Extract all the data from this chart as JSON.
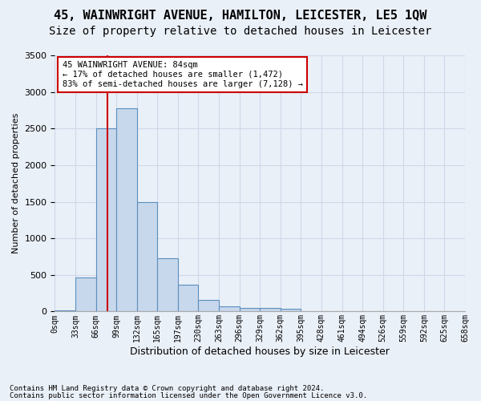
{
  "title": "45, WAINWRIGHT AVENUE, HAMILTON, LEICESTER, LE5 1QW",
  "subtitle": "Size of property relative to detached houses in Leicester",
  "xlabel": "Distribution of detached houses by size in Leicester",
  "ylabel": "Number of detached properties",
  "bin_labels": [
    "0sqm",
    "33sqm",
    "66sqm",
    "99sqm",
    "132sqm",
    "165sqm",
    "197sqm",
    "230sqm",
    "263sqm",
    "296sqm",
    "329sqm",
    "362sqm",
    "395sqm",
    "428sqm",
    "461sqm",
    "494sqm",
    "526sqm",
    "559sqm",
    "592sqm",
    "625sqm",
    "658sqm"
  ],
  "bar_values": [
    20,
    470,
    2500,
    2780,
    1500,
    730,
    370,
    155,
    65,
    50,
    45,
    35,
    5,
    5,
    5,
    5,
    5,
    5,
    5,
    5
  ],
  "bar_color": "#c8d8ec",
  "bar_edge_color": "#5a8fc0",
  "property_line_x": 84,
  "property_sqm": 84,
  "vline_color": "#cc0000",
  "annotation_text": "45 WAINWRIGHT AVENUE: 84sqm\n← 17% of detached houses are smaller (1,472)\n83% of semi-detached houses are larger (7,128) →",
  "annotation_box_color": "#ffffff",
  "annotation_box_edge": "#cc0000",
  "ylim": [
    0,
    3500
  ],
  "yticks": [
    0,
    500,
    1000,
    1500,
    2000,
    2500,
    3000,
    3500
  ],
  "grid_color": "#d0d8e8",
  "background_color": "#eaf0f8",
  "footer_line1": "Contains HM Land Registry data © Crown copyright and database right 2024.",
  "footer_line2": "Contains public sector information licensed under the Open Government Licence v3.0.",
  "title_fontsize": 11,
  "subtitle_fontsize": 10,
  "bin_width": 33
}
